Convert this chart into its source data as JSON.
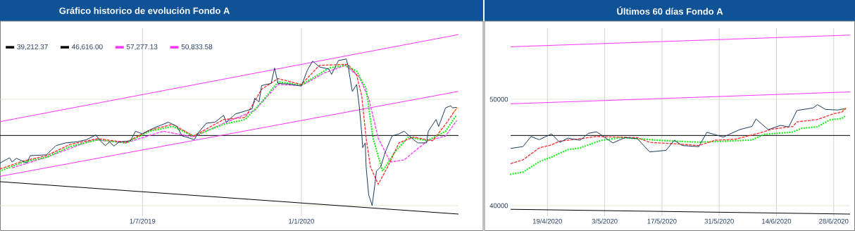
{
  "chart_data": [
    {
      "type": "line",
      "title": "Gráfico historico de evolución Fondo A",
      "xlim": [
        "2019-01-17",
        "2020-07-01"
      ],
      "ylim": [
        39000,
        56700
      ],
      "xticks": [
        {
          "value": "2019-07-01",
          "label": "1/7/2019"
        },
        {
          "value": "2020-01-01",
          "label": "1/1/2020"
        }
      ],
      "yticks": [
        40000,
        50000
      ],
      "tick_labels": "x",
      "grid": true,
      "legend": "top left",
      "series": [
        {
          "name": "39,212.37",
          "color": "#000000",
          "line_style": "solid",
          "x": [
            "2019-01-17",
            "2020-07-01"
          ],
          "values": [
            42250,
            39200
          ]
        },
        {
          "name": "46,616.00",
          "color": "#000000",
          "line_style": "solid",
          "x": [
            "2019-01-17",
            "2020-07-01"
          ],
          "values": [
            46600,
            46600
          ]
        },
        {
          "name": "57,277.13",
          "color": "#ff33ff",
          "line_style": "solid",
          "x": [
            "2019-01-17",
            "2020-07-01"
          ],
          "values": [
            47900,
            56100
          ]
        },
        {
          "name": "50,833.58",
          "color": "#ff33ff",
          "line_style": "solid",
          "x": [
            "2019-01-17",
            "2020-07-01"
          ],
          "values": [
            42750,
            50750
          ]
        },
        {
          "color": "#ff33ff",
          "line_style": "dashed",
          "x": [
            "2019-01-31",
            "2019-03-12",
            "2019-05-05",
            "2019-06-12",
            "2019-07-25",
            "2019-08-29",
            "2019-10-03",
            "2019-11-08",
            "2019-12-05",
            "2020-01-01",
            "2020-01-28",
            "2020-02-21",
            "2020-03-08",
            "2020-03-19",
            "2020-03-30",
            "2020-04-13",
            "2020-04-29",
            "2020-05-26",
            "2020-06-16",
            "2020-06-29"
          ],
          "values": [
            43550,
            44550,
            46200,
            45900,
            47000,
            46450,
            47750,
            48950,
            51400,
            51300,
            52500,
            53200,
            52100,
            50100,
            46350,
            44100,
            44300,
            46100,
            46550,
            48000
          ]
        },
        {
          "color": "#22ee22",
          "line_style": "dotted",
          "x": [
            "2019-01-17",
            "2019-02-13",
            "2019-03-12",
            "2019-04-08",
            "2019-05-10",
            "2019-06-12",
            "2019-07-09",
            "2019-08-05",
            "2019-08-29",
            "2019-10-03",
            "2019-10-28",
            "2019-11-16",
            "2019-12-05",
            "2020-01-01",
            "2020-02-02",
            "2020-02-21",
            "2020-03-05",
            "2020-03-16",
            "2020-03-24",
            "2020-04-04",
            "2020-04-18",
            "2020-05-04",
            "2020-05-26",
            "2020-06-16",
            "2020-06-29"
          ],
          "values": [
            43250,
            44100,
            44550,
            45550,
            46200,
            45900,
            47000,
            47450,
            46550,
            47650,
            48100,
            49750,
            51650,
            51350,
            52950,
            53200,
            52650,
            51000,
            46350,
            43250,
            45000,
            46450,
            46100,
            47000,
            48550
          ]
        },
        {
          "color": "#ff2a2a",
          "line_style": "dashed",
          "x": [
            "2019-01-17",
            "2019-02-13",
            "2019-03-12",
            "2019-04-08",
            "2019-05-10",
            "2019-06-12",
            "2019-07-09",
            "2019-08-05",
            "2019-08-29",
            "2019-10-03",
            "2019-10-28",
            "2019-11-16",
            "2019-12-05",
            "2020-01-01",
            "2020-01-22",
            "2020-02-24",
            "2020-03-05",
            "2020-03-11",
            "2020-03-16",
            "2020-03-21",
            "2020-03-30",
            "2020-04-10",
            "2020-04-23",
            "2020-05-10",
            "2020-06-01",
            "2020-06-16",
            "2020-06-29"
          ],
          "values": [
            43450,
            44200,
            44700,
            45750,
            46300,
            45950,
            47100,
            47650,
            46550,
            48100,
            48300,
            50950,
            51950,
            51400,
            53200,
            53300,
            52300,
            50300,
            46350,
            43650,
            42000,
            43650,
            45900,
            46450,
            46100,
            47650,
            49200
          ]
        },
        {
          "color": "#1b3a5c",
          "line_style": "solid",
          "x": [
            "2019-01-17",
            "2019-01-28",
            "2019-01-31",
            "2019-02-05",
            "2019-02-17",
            "2019-02-21",
            "2019-03-12",
            "2019-03-17",
            "2019-03-23",
            "2019-04-03",
            "2019-04-16",
            "2019-04-27",
            "2019-05-08",
            "2019-05-13",
            "2019-05-19",
            "2019-05-24",
            "2019-05-29",
            "2019-06-04",
            "2019-06-17",
            "2019-06-23",
            "2019-07-01",
            "2019-07-14",
            "2019-07-31",
            "2019-08-10",
            "2019-08-16",
            "2019-08-21",
            "2019-08-30",
            "2019-09-04",
            "2019-09-13",
            "2019-09-23",
            "2019-10-03",
            "2019-10-06",
            "2019-10-17",
            "2019-10-22",
            "2019-11-05",
            "2019-11-08",
            "2019-11-13",
            "2019-11-16",
            "2019-11-27",
            "2019-12-01",
            "2019-12-05",
            "2019-12-16",
            "2020-01-01",
            "2020-01-08",
            "2020-01-14",
            "2020-01-22",
            "2020-02-02",
            "2020-02-05",
            "2020-02-13",
            "2020-02-22",
            "2020-02-24",
            "2020-02-29",
            "2020-03-05",
            "2020-03-08",
            "2020-03-11",
            "2020-03-12",
            "2020-03-15",
            "2020-03-16",
            "2020-03-19",
            "2020-03-23",
            "2020-03-26",
            "2020-03-28",
            "2020-04-02",
            "2020-04-07",
            "2020-04-15",
            "2020-04-23",
            "2020-04-29",
            "2020-05-10",
            "2020-05-15",
            "2020-05-25",
            "2020-05-27",
            "2020-06-05",
            "2020-06-08",
            "2020-06-16",
            "2020-06-22",
            "2020-06-24",
            "2020-06-29"
          ],
          "values": [
            44000,
            44500,
            44100,
            44450,
            44000,
            44700,
            44780,
            45200,
            45650,
            45900,
            46000,
            46200,
            46650,
            46100,
            45650,
            46000,
            45600,
            46000,
            46100,
            47000,
            46750,
            47300,
            47850,
            47450,
            46550,
            46450,
            46200,
            46900,
            47750,
            47850,
            48500,
            47850,
            48650,
            48750,
            49100,
            50100,
            49750,
            51300,
            51500,
            52950,
            51500,
            51450,
            51250,
            52750,
            53600,
            53050,
            52850,
            52350,
            53650,
            53800,
            53200,
            50750,
            51400,
            49400,
            46750,
            45450,
            45900,
            43650,
            41000,
            40000,
            41900,
            43250,
            43650,
            45000,
            46550,
            46750,
            47000,
            46200,
            45900,
            45900,
            47000,
            48100,
            47450,
            49200,
            49400,
            49200,
            49250
          ]
        },
        {
          "color": "#ff9900",
          "line_style": "solid",
          "x": [
            "2020-06-24",
            "2020-07-01"
          ],
          "values": [
            48700,
            49250
          ]
        }
      ]
    },
    {
      "type": "line",
      "title": "Últimos 60 días Fondo A",
      "xlim": [
        "2020-04-10",
        "2020-07-02"
      ],
      "ylim": [
        39000,
        56700
      ],
      "xticks": [
        {
          "value": "2020-04-19",
          "label": "19/4/2020"
        },
        {
          "value": "2020-05-03",
          "label": "3/5/2020"
        },
        {
          "value": "2020-05-17",
          "label": "17/5/2020"
        },
        {
          "value": "2020-05-31",
          "label": "31/5/2020"
        },
        {
          "value": "2020-06-14",
          "label": "14/6/2020"
        },
        {
          "value": "2020-06-28",
          "label": "28/6/2020"
        }
      ],
      "yticks": [
        40000,
        50000
      ],
      "grid": true,
      "series": [
        {
          "color": "#000000",
          "line_style": "solid",
          "x": [
            "2020-04-10",
            "2020-07-02"
          ],
          "values": [
            39650,
            39200
          ]
        },
        {
          "color": "#000000",
          "line_style": "solid",
          "x": [
            "2020-04-10",
            "2020-07-02"
          ],
          "values": [
            46600,
            46600
          ]
        },
        {
          "color": "#ff33ff",
          "line_style": "solid",
          "x": [
            "2020-04-10",
            "2020-07-02"
          ],
          "values": [
            54950,
            56050
          ]
        },
        {
          "color": "#ff33ff",
          "line_style": "solid",
          "x": [
            "2020-04-10",
            "2020-07-02"
          ],
          "values": [
            49580,
            50700
          ]
        },
        {
          "color": "#22ee22",
          "line_style": "dotted",
          "x": [
            "2020-04-10",
            "2020-04-13",
            "2020-04-17",
            "2020-04-20",
            "2020-04-24",
            "2020-04-27",
            "2020-05-02",
            "2020-05-07",
            "2020-05-11",
            "2020-05-17",
            "2020-05-26",
            "2020-06-02",
            "2020-06-08",
            "2020-06-11",
            "2020-06-18",
            "2020-06-20",
            "2020-06-24",
            "2020-06-27",
            "2020-06-30",
            "2020-07-01"
          ],
          "values": [
            42950,
            43150,
            44130,
            44570,
            45270,
            45430,
            46130,
            46400,
            46300,
            46130,
            45970,
            46070,
            46180,
            46700,
            46920,
            47260,
            47420,
            48060,
            48200,
            48490
          ]
        },
        {
          "color": "#ff2a2a",
          "line_style": "dashed",
          "x": [
            "2020-04-10",
            "2020-04-13",
            "2020-04-17",
            "2020-04-20",
            "2020-04-22",
            "2020-04-26",
            "2020-05-01",
            "2020-05-11",
            "2020-05-14",
            "2020-05-21",
            "2020-05-26",
            "2020-05-30",
            "2020-06-04",
            "2020-06-10",
            "2020-06-13",
            "2020-06-18",
            "2020-06-19",
            "2020-06-24",
            "2020-06-28",
            "2020-06-30",
            "2020-07-01"
          ],
          "values": [
            43950,
            44300,
            45430,
            45720,
            46070,
            46250,
            46500,
            46400,
            45950,
            45800,
            45650,
            46150,
            46250,
            46850,
            47200,
            47450,
            47880,
            48100,
            48650,
            48800,
            49150
          ]
        },
        {
          "color": "#1b3a5c",
          "line_style": "solid",
          "x": [
            "2020-04-10",
            "2020-04-13",
            "2020-04-15",
            "2020-04-17",
            "2020-04-20",
            "2020-04-22",
            "2020-04-24",
            "2020-04-27",
            "2020-04-29",
            "2020-05-01",
            "2020-05-05",
            "2020-05-08",
            "2020-05-11",
            "2020-05-14",
            "2020-05-18",
            "2020-05-20",
            "2020-05-22",
            "2020-05-26",
            "2020-05-28",
            "2020-06-01",
            "2020-06-05",
            "2020-06-08",
            "2020-06-09",
            "2020-06-12",
            "2020-06-15",
            "2020-06-17",
            "2020-06-19",
            "2020-06-23",
            "2020-06-24",
            "2020-06-26",
            "2020-06-29",
            "2020-07-01"
          ],
          "values": [
            45380,
            45550,
            46500,
            46200,
            46750,
            45950,
            46350,
            46150,
            46800,
            46950,
            45900,
            46400,
            46300,
            45050,
            45200,
            46150,
            45650,
            45550,
            46900,
            46450,
            47150,
            47450,
            48150,
            47150,
            47550,
            47400,
            48950,
            49200,
            49500,
            49050,
            49000,
            49150
          ]
        },
        {
          "color": "#ff9900",
          "line_style": "solid",
          "x": [
            "2020-06-30",
            "2020-07-01"
          ],
          "values": [
            48950,
            49200
          ]
        }
      ]
    }
  ]
}
